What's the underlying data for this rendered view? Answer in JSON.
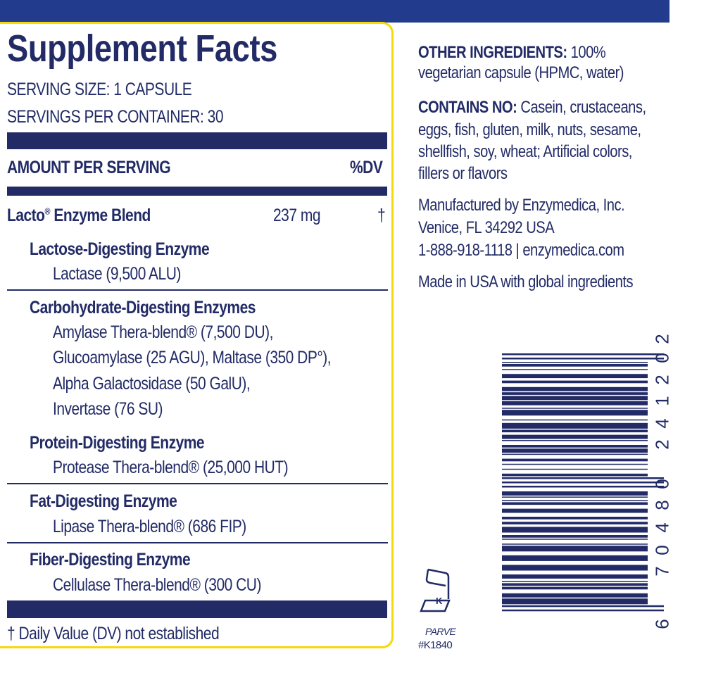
{
  "colors": {
    "navy": "#222b66",
    "top_bar": "#233b8c",
    "border": "#f5d90a"
  },
  "facts": {
    "title": "Supplement Facts",
    "serving_size": "SERVING SIZE: 1 CAPSULE",
    "servings_per_container": "SERVINGS PER CONTAINER: 30",
    "amount_header": "AMOUNT PER SERVING",
    "dv_header": "%DV",
    "blend": {
      "name": "Lacto",
      "reg": "®",
      "rest": " Enzyme Blend",
      "amount": "237 mg",
      "dv": "†"
    },
    "groups": [
      {
        "heading": "Lactose-Digesting Enzyme",
        "lines": [
          "Lactase (9,500 ALU)"
        ]
      },
      {
        "heading": "Carbohydrate-Digesting Enzymes",
        "lines": [
          "Amylase Thera-blend® (7,500 DU),",
          "Glucoamylase (25 AGU), Maltase (350 DP°),",
          "Alpha Galactosidase (50 GalU),",
          "Invertase (76 SU)"
        ]
      },
      {
        "heading": "Protein-Digesting Enzyme",
        "lines": [
          "Protease Thera-blend® (25,000 HUT)"
        ]
      },
      {
        "heading": "Fat-Digesting Enzyme",
        "lines": [
          "Lipase Thera-blend® (686 FIP)"
        ]
      },
      {
        "heading": "Fiber-Digesting Enzyme",
        "lines": [
          "Cellulase Thera-blend® (300 CU)"
        ]
      }
    ],
    "footnote": "† Daily Value (DV) not established"
  },
  "right": {
    "other_label": "OTHER INGREDIENTS:",
    "other_text_1": " 100%",
    "other_text_2": "vegetarian capsule (HPMC, water)",
    "contains_label": "CONTAINS NO:",
    "contains_1": " Casein, crustaceans,",
    "contains_2": "eggs, fish, gluten, milk, nuts, sesame,",
    "contains_3": "shellfish, soy, wheat; Artificial colors,",
    "contains_4": "fillers or flavors",
    "mfr_1": "Manufactured by Enzymedica, Inc.",
    "mfr_2": "Venice, FL 34292 USA",
    "mfr_3": "1-888-918-1118 | enzymedica.com",
    "made_in": "Made in USA with global ingredients"
  },
  "kosher": {
    "icon": "kosher-k-icon",
    "letter": "K",
    "status": "PARVE",
    "number": "#K1840"
  },
  "barcode": {
    "digits": [
      "6",
      "7",
      "0",
      "4",
      "8",
      "0",
      "2",
      "4",
      "1",
      "2",
      "0",
      "2"
    ]
  }
}
